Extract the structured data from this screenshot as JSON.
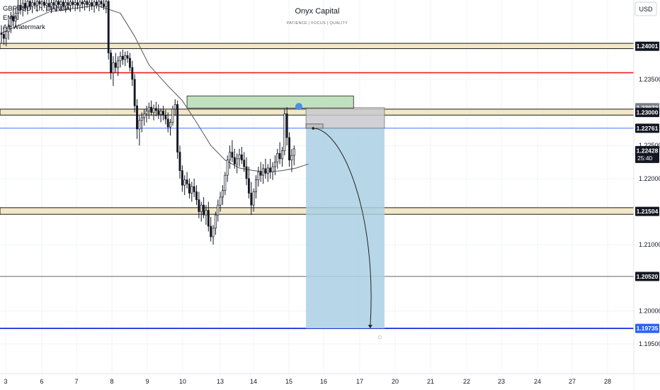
{
  "header": {
    "title": "Onyx Capital",
    "subtitle": "PATIENCE  |  FOCUS  |  QUALITY",
    "currency_button": "USD"
  },
  "legend": {
    "symbol": "GBPUSD, 1h, OANDA",
    "indicator_1": "EMA",
    "indicator_2": "Alt Watermark"
  },
  "colors": {
    "zone_fill": "#f2e8c8",
    "zone_border": "#1a1a1a",
    "red_level": "#ef1c1c",
    "blue_level": "#2962ff",
    "target_line": "#1c2bd6",
    "target_box": "#aad0e4",
    "stop_box": "#c9c9ce",
    "supply_box": "#b6dbb4",
    "candle": "#131722",
    "ema": "#555555",
    "marker": "#4a90e2"
  },
  "chart_data": {
    "type": "candlestick",
    "symbol": "GBPUSD",
    "timeframe": "1h",
    "ylim": [
      1.1905,
      1.247
    ],
    "x_ticks": [
      "3",
      "6",
      "7",
      "8",
      "9",
      "10",
      "13",
      "14",
      "15",
      "16",
      "17",
      "20",
      "21",
      "22",
      "23",
      "24",
      "27",
      "28"
    ],
    "y_ticks": [
      "1.23500",
      "1.22500",
      "1.22000",
      "1.21000",
      "1.20000",
      "1.19500"
    ],
    "price_labels": [
      {
        "value": 1.24001,
        "text": "1.24001",
        "style": "dark"
      },
      {
        "value": 1.23072,
        "text": "1.23072",
        "style": "grey"
      },
      {
        "value": 1.23,
        "text": "1.23000",
        "style": "dark"
      },
      {
        "value": 1.22761,
        "text": "1.22761",
        "style": "dark"
      },
      {
        "value": 1.22428,
        "text": "1.22428",
        "style": "dark",
        "extra": "25:40"
      },
      {
        "value": 1.21504,
        "text": "1.21504",
        "style": "dark"
      },
      {
        "value": 1.2052,
        "text": "1.20520",
        "style": "dark"
      },
      {
        "value": 1.19735,
        "text": "1.19735",
        "style": "blue"
      }
    ],
    "zones": [
      {
        "low": 1.23965,
        "high": 1.24045
      },
      {
        "low": 1.2296,
        "high": 1.2305
      },
      {
        "low": 1.2146,
        "high": 1.2156
      }
    ],
    "levels": [
      {
        "value": 1.236,
        "color": "red"
      },
      {
        "value": 1.22761,
        "color": "blue"
      },
      {
        "value": 1.2052,
        "color": "dark"
      },
      {
        "value": 1.19735,
        "color": "blue_thick"
      }
    ],
    "position": {
      "entry": 1.22761,
      "stop": 1.23072,
      "target": 1.19735,
      "start_index": 128,
      "end_index": 161
    },
    "supply_zone": {
      "low": 1.23065,
      "high": 1.2325,
      "start_index": 78,
      "end_index": 148
    },
    "candles": [
      [
        1.242,
        1.2432,
        1.2405,
        1.2418
      ],
      [
        1.2418,
        1.243,
        1.2402,
        1.2412
      ],
      [
        1.2412,
        1.2428,
        1.24,
        1.2422
      ],
      [
        1.2422,
        1.244,
        1.241,
        1.243
      ],
      [
        1.243,
        1.2452,
        1.242,
        1.2445
      ],
      [
        1.2445,
        1.246,
        1.2432,
        1.2438
      ],
      [
        1.2438,
        1.2458,
        1.2428,
        1.245
      ],
      [
        1.245,
        1.247,
        1.244,
        1.2462
      ],
      [
        1.2462,
        1.247,
        1.2448,
        1.2455
      ],
      [
        1.2455,
        1.247,
        1.2445,
        1.2465
      ],
      [
        1.2465,
        1.247,
        1.2452,
        1.2458
      ],
      [
        1.2458,
        1.247,
        1.2448,
        1.2468
      ],
      [
        1.2468,
        1.247,
        1.2455,
        1.246
      ],
      [
        1.246,
        1.247,
        1.245,
        1.2466
      ],
      [
        1.2466,
        1.247,
        1.2456,
        1.2462
      ],
      [
        1.2462,
        1.247,
        1.2452,
        1.2468
      ],
      [
        1.2468,
        1.247,
        1.2458,
        1.2464
      ],
      [
        1.2464,
        1.247,
        1.2455,
        1.2467
      ],
      [
        1.2467,
        1.247,
        1.2458,
        1.2462
      ],
      [
        1.2462,
        1.247,
        1.2452,
        1.2465
      ],
      [
        1.2465,
        1.247,
        1.2455,
        1.246
      ],
      [
        1.246,
        1.247,
        1.245,
        1.2466
      ],
      [
        1.2466,
        1.247,
        1.2456,
        1.2462
      ],
      [
        1.2462,
        1.247,
        1.2452,
        1.2468
      ],
      [
        1.2468,
        1.247,
        1.2458,
        1.2463
      ],
      [
        1.2463,
        1.247,
        1.2453,
        1.2467
      ],
      [
        1.2467,
        1.247,
        1.2456,
        1.2461
      ],
      [
        1.2461,
        1.247,
        1.2451,
        1.2466
      ],
      [
        1.2466,
        1.247,
        1.2455,
        1.2462
      ],
      [
        1.2462,
        1.247,
        1.2452,
        1.2467
      ],
      [
        1.2467,
        1.247,
        1.2457,
        1.2463
      ],
      [
        1.2463,
        1.247,
        1.2453,
        1.2466
      ],
      [
        1.2466,
        1.247,
        1.2456,
        1.2462
      ],
      [
        1.2462,
        1.247,
        1.2452,
        1.2467
      ],
      [
        1.2467,
        1.247,
        1.2457,
        1.2464
      ],
      [
        1.2464,
        1.247,
        1.2454,
        1.2468
      ],
      [
        1.2468,
        1.247,
        1.2458,
        1.2463
      ],
      [
        1.2463,
        1.247,
        1.2453,
        1.2466
      ],
      [
        1.2466,
        1.247,
        1.2455,
        1.2461
      ],
      [
        1.2461,
        1.247,
        1.2451,
        1.2467
      ],
      [
        1.2467,
        1.247,
        1.2457,
        1.2463
      ],
      [
        1.2463,
        1.247,
        1.2453,
        1.2468
      ],
      [
        1.2468,
        1.247,
        1.2458,
        1.2464
      ],
      [
        1.2464,
        1.247,
        1.2455,
        1.246
      ],
      [
        1.246,
        1.247,
        1.245,
        1.2468
      ],
      [
        1.2468,
        1.247,
        1.238,
        1.239
      ],
      [
        1.239,
        1.2395,
        1.235,
        1.236
      ],
      [
        1.236,
        1.2385,
        1.234,
        1.2375
      ],
      [
        1.2375,
        1.239,
        1.236,
        1.2368
      ],
      [
        1.2368,
        1.2385,
        1.2355,
        1.2378
      ],
      [
        1.2378,
        1.2392,
        1.2368,
        1.2385
      ],
      [
        1.2385,
        1.2395,
        1.2372,
        1.238
      ],
      [
        1.238,
        1.2392,
        1.237,
        1.2386
      ],
      [
        1.2386,
        1.2393,
        1.2375,
        1.2382
      ],
      [
        1.2382,
        1.239,
        1.2362,
        1.2368
      ],
      [
        1.2368,
        1.2378,
        1.234,
        1.235
      ],
      [
        1.235,
        1.2358,
        1.23,
        1.231
      ],
      [
        1.231,
        1.232,
        1.226,
        1.2275
      ],
      [
        1.2275,
        1.2295,
        1.225,
        1.2288
      ],
      [
        1.2288,
        1.23,
        1.227,
        1.2292
      ],
      [
        1.2292,
        1.2305,
        1.228,
        1.2298
      ],
      [
        1.2298,
        1.231,
        1.2285,
        1.2302
      ],
      [
        1.2302,
        1.2315,
        1.229,
        1.2308
      ],
      [
        1.2308,
        1.2318,
        1.2295,
        1.23
      ],
      [
        1.23,
        1.2312,
        1.2288,
        1.2306
      ],
      [
        1.2306,
        1.2316,
        1.2294,
        1.2303
      ],
      [
        1.2303,
        1.2312,
        1.229,
        1.2297
      ],
      [
        1.2297,
        1.2306,
        1.2285,
        1.2302
      ],
      [
        1.2302,
        1.231,
        1.2288,
        1.2296
      ],
      [
        1.2296,
        1.2304,
        1.2282,
        1.229
      ],
      [
        1.229,
        1.23,
        1.227,
        1.2278
      ],
      [
        1.2278,
        1.229,
        1.2265,
        1.2285
      ],
      [
        1.2285,
        1.231,
        1.228,
        1.2305
      ],
      [
        1.2305,
        1.232,
        1.2295,
        1.2312
      ],
      [
        1.2312,
        1.2318,
        1.223,
        1.224
      ],
      [
        1.224,
        1.225,
        1.22,
        1.2212
      ],
      [
        1.2212,
        1.222,
        1.218,
        1.219
      ],
      [
        1.219,
        1.2205,
        1.2175,
        1.2198
      ],
      [
        1.2198,
        1.221,
        1.2185,
        1.2192
      ],
      [
        1.2192,
        1.22,
        1.217,
        1.2178
      ],
      [
        1.2178,
        1.2195,
        1.2165,
        1.2188
      ],
      [
        1.2188,
        1.22,
        1.2172,
        1.218
      ],
      [
        1.218,
        1.219,
        1.216,
        1.2168
      ],
      [
        1.2168,
        1.218,
        1.214,
        1.215
      ],
      [
        1.215,
        1.2165,
        1.2135,
        1.216
      ],
      [
        1.216,
        1.2172,
        1.214,
        1.2145
      ],
      [
        1.2145,
        1.216,
        1.213,
        1.2152
      ],
      [
        1.2152,
        1.2165,
        1.212,
        1.2128
      ],
      [
        1.2128,
        1.2142,
        1.2105,
        1.2112
      ],
      [
        1.2112,
        1.213,
        1.21,
        1.2125
      ],
      [
        1.2125,
        1.215,
        1.2115,
        1.2145
      ],
      [
        1.2145,
        1.2168,
        1.2135,
        1.216
      ],
      [
        1.216,
        1.218,
        1.215,
        1.2172
      ],
      [
        1.2172,
        1.219,
        1.216,
        1.2182
      ],
      [
        1.2182,
        1.221,
        1.2175,
        1.2205
      ],
      [
        1.2205,
        1.2235,
        1.2195,
        1.2228
      ],
      [
        1.2228,
        1.225,
        1.2215,
        1.224
      ],
      [
        1.224,
        1.2258,
        1.2225,
        1.2232
      ],
      [
        1.2232,
        1.2245,
        1.2215,
        1.2222
      ],
      [
        1.2222,
        1.2238,
        1.2208,
        1.223
      ],
      [
        1.223,
        1.2245,
        1.2218,
        1.2236
      ],
      [
        1.2236,
        1.2248,
        1.2222,
        1.2228
      ],
      [
        1.2228,
        1.224,
        1.221,
        1.2218
      ],
      [
        1.2218,
        1.2232,
        1.219,
        1.22
      ],
      [
        1.22,
        1.2218,
        1.217,
        1.2178
      ],
      [
        1.2178,
        1.2195,
        1.2145,
        1.216
      ],
      [
        1.216,
        1.2185,
        1.215,
        1.218
      ],
      [
        1.218,
        1.2205,
        1.217,
        1.2198
      ],
      [
        1.2198,
        1.2218,
        1.2188,
        1.221
      ],
      [
        1.221,
        1.2225,
        1.2195,
        1.2205
      ],
      [
        1.2205,
        1.2222,
        1.2192,
        1.2215
      ],
      [
        1.2215,
        1.223,
        1.22,
        1.2208
      ],
      [
        1.2208,
        1.2222,
        1.2195,
        1.2216
      ],
      [
        1.2216,
        1.223,
        1.22,
        1.221
      ],
      [
        1.221,
        1.2225,
        1.2198,
        1.2218
      ],
      [
        1.2218,
        1.2235,
        1.2205,
        1.2225
      ],
      [
        1.2225,
        1.2245,
        1.2215,
        1.2238
      ],
      [
        1.2238,
        1.2255,
        1.2222,
        1.223
      ],
      [
        1.223,
        1.2248,
        1.2218,
        1.2242
      ],
      [
        1.2242,
        1.2305,
        1.2235,
        1.2298
      ],
      [
        1.2298,
        1.2308,
        1.225,
        1.2262
      ],
      [
        1.2262,
        1.227,
        1.2218,
        1.2228
      ],
      [
        1.2228,
        1.2245,
        1.221,
        1.2235
      ],
      [
        1.2235,
        1.225,
        1.222,
        1.2245
      ]
    ],
    "ema_trace": [
      [
        0,
        1.242
      ],
      [
        20,
        1.2452
      ],
      [
        40,
        1.2462
      ],
      [
        50,
        1.245
      ],
      [
        56,
        1.2415
      ],
      [
        62,
        1.2372
      ],
      [
        70,
        1.234
      ],
      [
        76,
        1.2318
      ],
      [
        82,
        1.2285
      ],
      [
        88,
        1.225
      ],
      [
        94,
        1.2228
      ],
      [
        100,
        1.2216
      ],
      [
        106,
        1.2212
      ],
      [
        112,
        1.221
      ],
      [
        118,
        1.2212
      ],
      [
        124,
        1.2216
      ],
      [
        129,
        1.2222
      ]
    ]
  }
}
